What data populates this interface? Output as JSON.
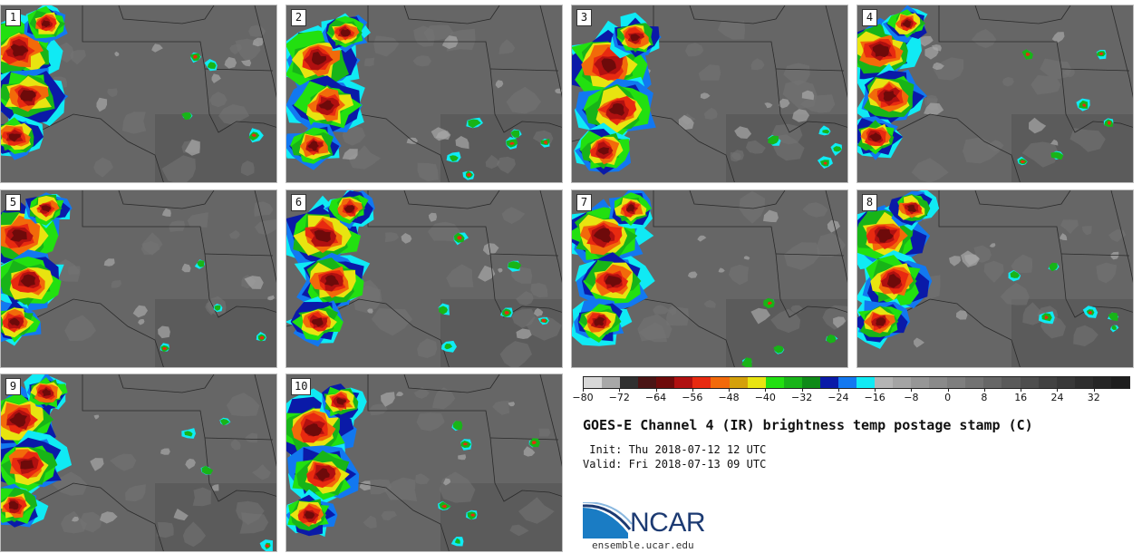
{
  "panels": [
    {
      "label": "1"
    },
    {
      "label": "2"
    },
    {
      "label": "3"
    },
    {
      "label": "4"
    },
    {
      "label": "5"
    },
    {
      "label": "6"
    },
    {
      "label": "7"
    },
    {
      "label": "8"
    },
    {
      "label": "9"
    },
    {
      "label": "10"
    }
  ],
  "colorbar": {
    "colors": [
      "#d8d8d8",
      "#a8a8a8",
      "#303030",
      "#4a1414",
      "#6e0a0a",
      "#b01010",
      "#e82a10",
      "#f26a0a",
      "#d4a00a",
      "#e8e410",
      "#22e010",
      "#18b418",
      "#0e8a18",
      "#0a1aa8",
      "#1278f0",
      "#10eaf4",
      "#b4b4b4",
      "#a4a4a4",
      "#969696",
      "#8a8a8a",
      "#7e7e7e",
      "#727272",
      "#666666",
      "#5a5a5a",
      "#4e4e4e",
      "#424242",
      "#383838",
      "#2e2e2e",
      "#262626",
      "#1e1e1e"
    ],
    "ticks": [
      "−80",
      "−72",
      "−64",
      "−56",
      "−48",
      "−40",
      "−32",
      "−24",
      "−16",
      "−8",
      "0",
      "8",
      "16",
      "24",
      "32"
    ]
  },
  "title": "GOES-E Channel 4 (IR) brightness temp postage stamp (C)",
  "init": " Init: Thu 2018-07-12 12 UTC",
  "valid": "Valid: Fri 2018-07-13 09 UTC",
  "logo": {
    "text": "NCAR",
    "url": "ensemble.ucar.edu",
    "color": "#1c3a72",
    "accent": "#1a7cc4"
  }
}
